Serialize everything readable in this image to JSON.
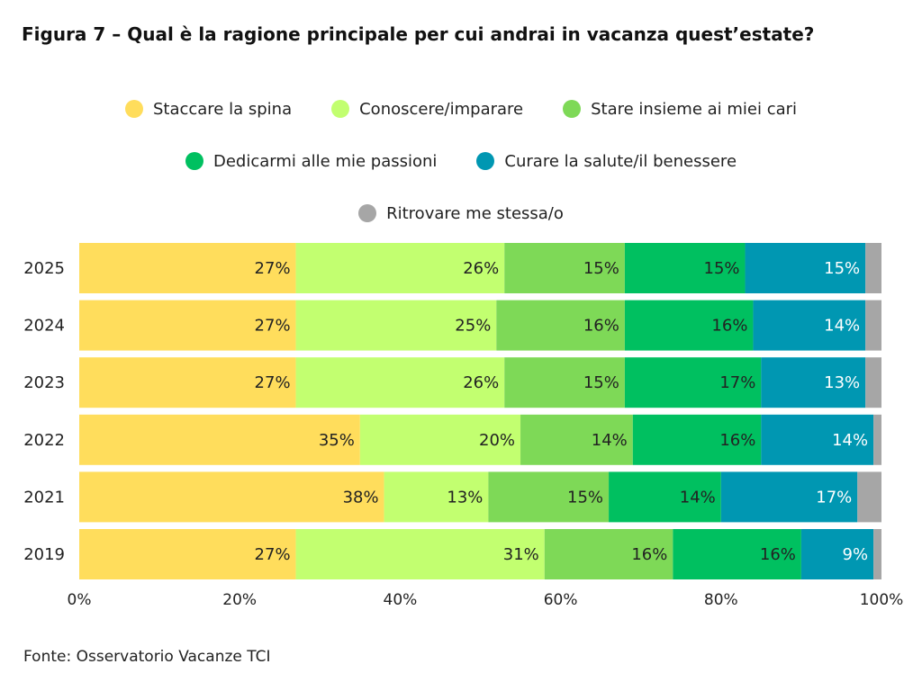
{
  "chart_data": {
    "type": "bar",
    "orientation": "horizontal",
    "stacked": true,
    "title": "Figura 7 – Qual è la ragione principale per cui andrai in vacanza quest’estate?",
    "categories": [
      "2025",
      "2024",
      "2023",
      "2022",
      "2021",
      "2019"
    ],
    "series": [
      {
        "name": "Staccare la spina",
        "color": "#FFDD5C",
        "label_color": "#222222",
        "values": [
          27,
          27,
          27,
          35,
          38,
          27
        ],
        "labels": [
          "27%",
          "27%",
          "27%",
          "35%",
          "38%",
          "27%"
        ]
      },
      {
        "name": "Conoscere/imparare",
        "color": "#C2FF70",
        "label_color": "#222222",
        "values": [
          26,
          25,
          26,
          20,
          13,
          31
        ],
        "labels": [
          "26%",
          "25%",
          "26%",
          "20%",
          "13%",
          "31%"
        ]
      },
      {
        "name": "Stare insieme ai miei cari",
        "color": "#7ED957",
        "label_color": "#222222",
        "values": [
          15,
          16,
          15,
          14,
          15,
          16
        ],
        "labels": [
          "15%",
          "16%",
          "15%",
          "14%",
          "15%",
          "16%"
        ]
      },
      {
        "name": "Dedicarmi alle mie passioni",
        "color": "#00C060",
        "label_color": "#222222",
        "values": [
          15,
          16,
          17,
          16,
          14,
          16
        ],
        "labels": [
          "15%",
          "16%",
          "17%",
          "16%",
          "14%",
          "16%"
        ]
      },
      {
        "name": "Curare la salute/il benessere",
        "color": "#0097B2",
        "label_color": "#ffffff",
        "values": [
          15,
          14,
          13,
          14,
          17,
          9
        ],
        "labels": [
          "15%",
          "14%",
          "13%",
          "14%",
          "17%",
          "9%"
        ]
      },
      {
        "name": "Ritrovare me stessa/o",
        "color": "#A6A6A6",
        "label_color": "#222222",
        "values": [
          2,
          2,
          2,
          1,
          3,
          1
        ],
        "labels": [
          "",
          "",
          "",
          "",
          "",
          ""
        ]
      }
    ],
    "xlim": [
      0,
      100
    ],
    "xticks": [
      "0%",
      "20%",
      "40%",
      "60%",
      "80%",
      "100%"
    ],
    "legend_position": "top",
    "grid": false,
    "source": "Fonte: Osservatorio Vacanze TCI"
  }
}
